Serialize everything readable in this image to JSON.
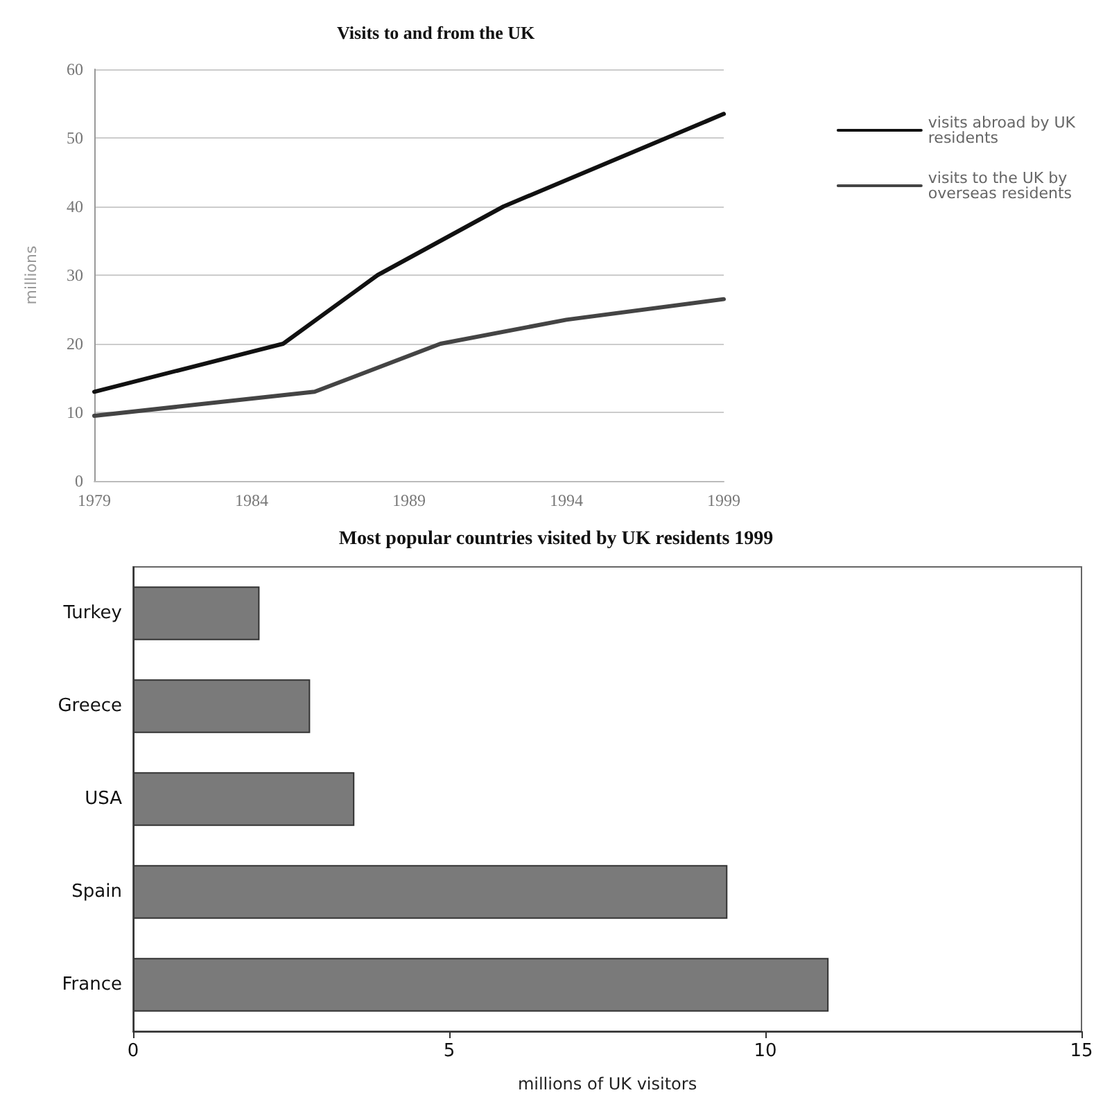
{
  "chart_data": [
    {
      "type": "line",
      "title": "Visits to and from the UK",
      "ylabel": "millions",
      "xlim": [
        1979,
        1999
      ],
      "xticks": [
        1979,
        1984,
        1989,
        1994,
        1999
      ],
      "ylim": [
        0,
        60
      ],
      "yticks": [
        0,
        10,
        20,
        30,
        40,
        50,
        60
      ],
      "grid": "y",
      "legend": "right",
      "marker": "none",
      "line_style": "solid",
      "series": [
        {
          "name": "visits abroad by UK residents",
          "color": "#111111",
          "x": [
            1979,
            1985,
            1988,
            1992,
            1999
          ],
          "values": [
            13,
            20,
            30,
            40,
            53.5
          ]
        },
        {
          "name": "visits to the UK by overseas residents",
          "color": "#444444",
          "x": [
            1979,
            1986,
            1990,
            1994,
            1999
          ],
          "values": [
            9.5,
            13,
            20,
            23.5,
            26.5
          ]
        }
      ]
    },
    {
      "type": "bar",
      "orientation": "horizontal",
      "title": "Most popular countries visited by UK residents 1999",
      "xlabel": "millions of UK visitors",
      "categories": [
        "Turkey",
        "Greece",
        "USA",
        "Spain",
        "France"
      ],
      "values": [
        2,
        2.8,
        3.5,
        9.4,
        11
      ],
      "color": "#7a7a7a",
      "xlim": [
        0,
        15
      ],
      "xticks": [
        0,
        5,
        10,
        15
      ],
      "grid": false,
      "legend": false
    }
  ]
}
